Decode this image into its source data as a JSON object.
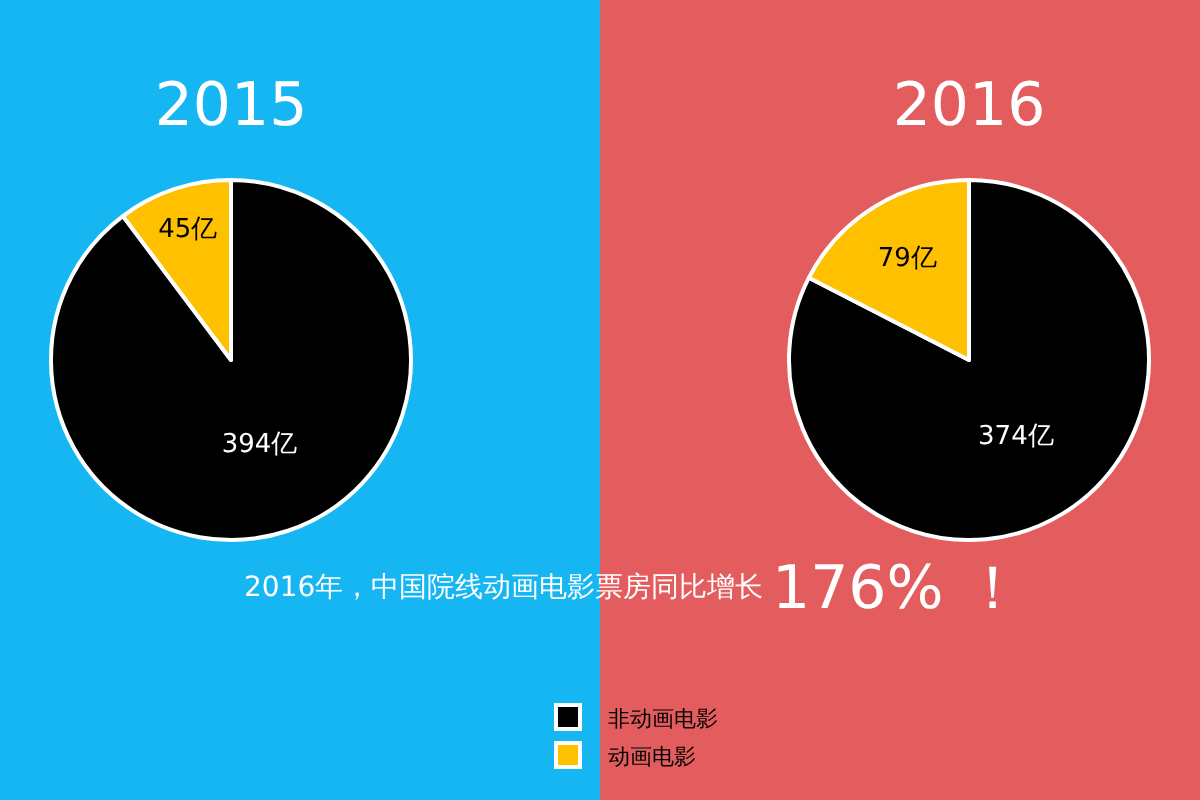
{
  "chart_data": [
    {
      "type": "pie",
      "title": "2015",
      "categories": [
        "非动画电影",
        "动画电影"
      ],
      "values": [
        394,
        45
      ],
      "value_labels": [
        "394亿",
        "45亿"
      ],
      "colors": [
        "#000000",
        "#ffc000"
      ],
      "legend": "bottom"
    },
    {
      "type": "pie",
      "title": "2016",
      "categories": [
        null,
        null
      ],
      "values": [
        374,
        79
      ],
      "value_labels": [
        "374亿",
        "79亿"
      ],
      "colors": [
        "#000000",
        "#ffc000"
      ],
      "legend": false,
      "annotations": [
        "2016年，中国院线动画电影票房同比增长",
        "176% ！"
      ]
    }
  ]
}
